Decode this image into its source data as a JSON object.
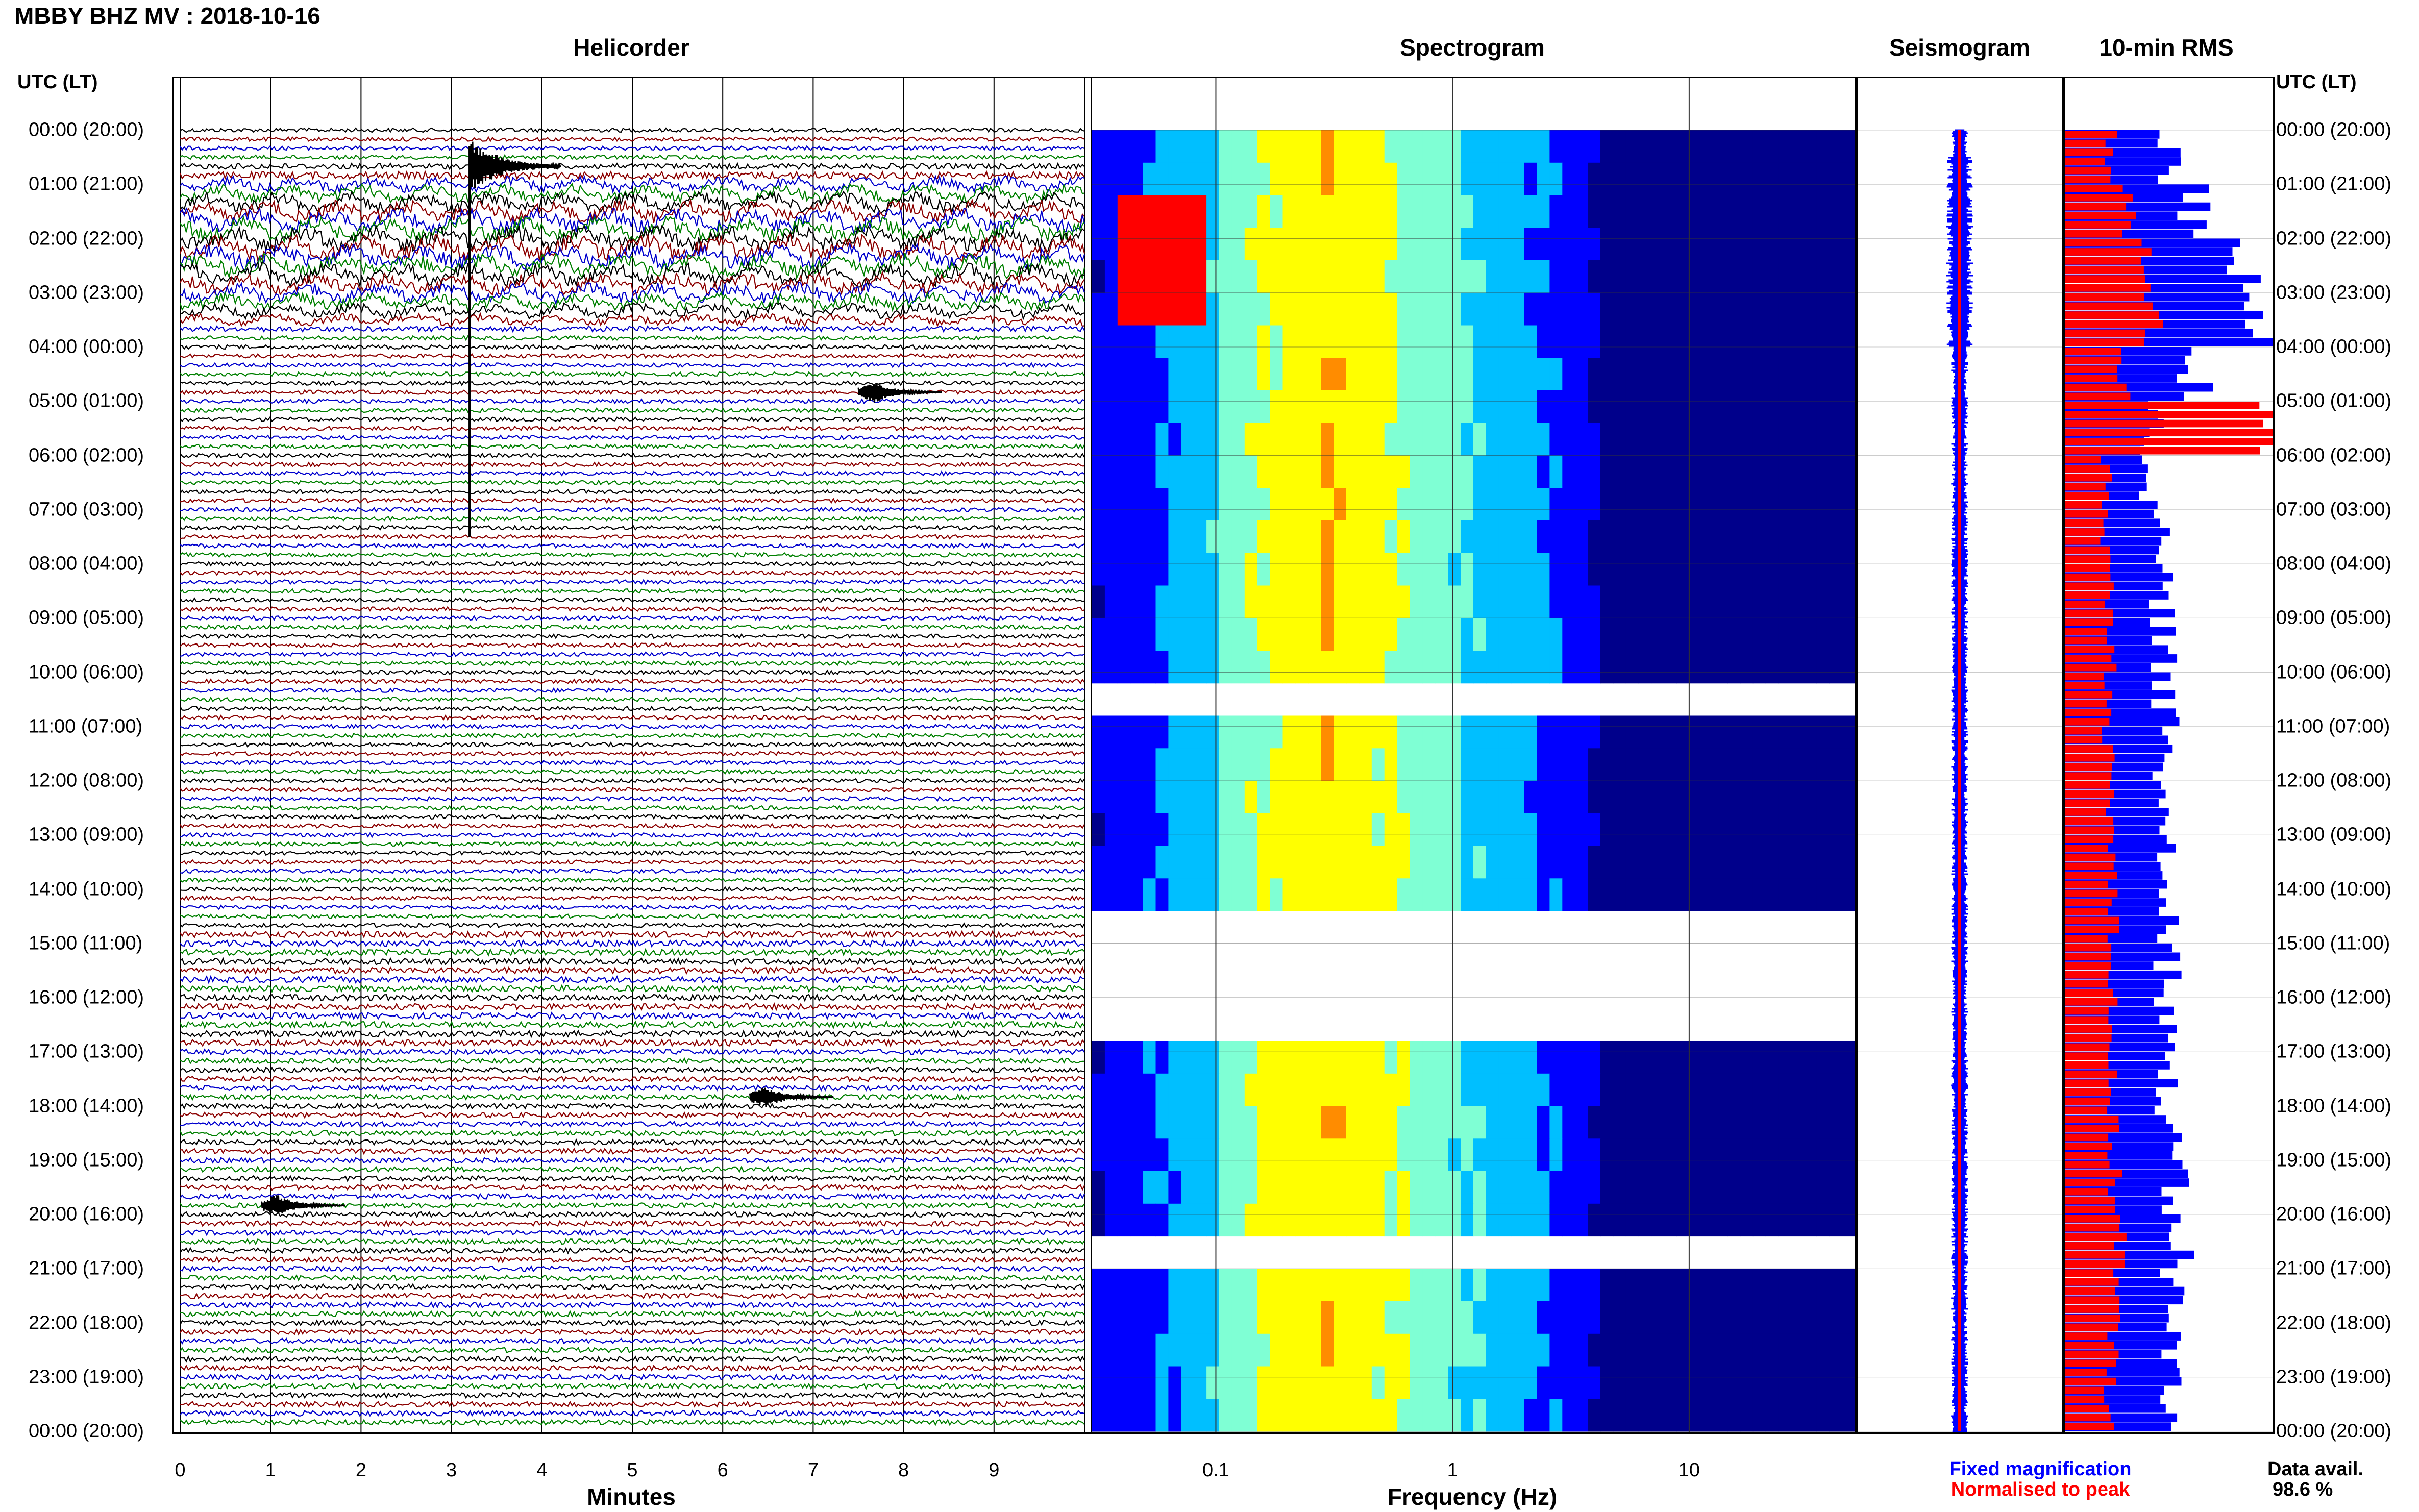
{
  "header": {
    "title": "MBBY BHZ MV : 2018-10-16",
    "utc_label": "UTC (LT)",
    "utc_label_right": "UTC (LT)"
  },
  "panels": {
    "helicorder": "Helicorder",
    "spectrogram": "Spectrogram",
    "seismogram": "Seismogram",
    "rms": "10-min RMS"
  },
  "time_labels": [
    "00:00 (20:00)",
    "01:00 (21:00)",
    "02:00 (22:00)",
    "03:00 (23:00)",
    "04:00 (00:00)",
    "05:00 (01:00)",
    "06:00 (02:00)",
    "07:00 (03:00)",
    "08:00 (04:00)",
    "09:00 (05:00)",
    "10:00 (06:00)",
    "11:00 (07:00)",
    "12:00 (08:00)",
    "13:00 (09:00)",
    "14:00 (10:00)",
    "15:00 (11:00)",
    "16:00 (12:00)",
    "17:00 (13:00)",
    "18:00 (14:00)",
    "19:00 (15:00)",
    "20:00 (16:00)",
    "21:00 (17:00)",
    "22:00 (18:00)",
    "23:00 (19:00)",
    "00:00 (20:00)"
  ],
  "helicorder_axis": {
    "ticks": [
      "0",
      "1",
      "2",
      "3",
      "4",
      "5",
      "6",
      "7",
      "8",
      "9"
    ],
    "label": "Minutes"
  },
  "spectrogram_axis": {
    "ticks": [
      "0.1",
      "1",
      "10"
    ],
    "label": "Frequency (Hz)"
  },
  "legend": {
    "fixed": "Fixed magnification",
    "normalised": "Normalised to peak",
    "fixed_color": "#0000ff",
    "normalised_color": "#ff0000"
  },
  "availability": {
    "label": "Data avail.",
    "value": "98.6 %"
  },
  "chart_data": [
    {
      "type": "line",
      "title": "Helicorder",
      "xlabel": "Minutes",
      "xlim": [
        0,
        10
      ],
      "trace_colors": [
        "#000000",
        "#8b0000",
        "#0000cd",
        "#008000"
      ],
      "rows_per_hour": 6,
      "row_span_minutes": 10,
      "events": [
        {
          "time": "00:40",
          "minute": 3.2,
          "note": ""
        },
        {
          "time": "04:50",
          "minute": 7.5,
          "note": ""
        },
        {
          "time": "17:50",
          "minute": 6.3,
          "note": ""
        },
        {
          "time": "19:50",
          "minute": 0.9,
          "note": ""
        }
      ]
    },
    {
      "type": "heatmap",
      "title": "Spectrogram",
      "xlabel": "Frequency (Hz)",
      "xscale": "log",
      "xlim": [
        0.03,
        50
      ],
      "colormap": [
        "#00008b",
        "#0000ff",
        "#00bfff",
        "#7fffd4",
        "#ffff00",
        "#ff8c00",
        "#ff0000"
      ]
    },
    {
      "type": "line",
      "title": "Seismogram",
      "series": [
        {
          "name": "Fixed magnification",
          "color": "#0000ff"
        },
        {
          "name": "Normalised to peak",
          "color": "#ff0000"
        }
      ]
    },
    {
      "type": "bar",
      "title": "10-min RMS",
      "orientation": "horizontal",
      "categories": [
        "00:00",
        "01:00",
        "02:00",
        "03:00",
        "04:00",
        "05:00",
        "06:00",
        "07:00",
        "08:00",
        "09:00",
        "10:00",
        "11:00",
        "12:00",
        "13:00",
        "14:00",
        "15:00",
        "16:00",
        "17:00",
        "18:00",
        "19:00",
        "20:00",
        "21:00",
        "22:00",
        "23:00"
      ],
      "series": [
        {
          "name": "Fixed magnification",
          "color": "#0000ff",
          "values": [
            0.5,
            0.62,
            0.82,
            0.98,
            0.62,
            0.42,
            0.41,
            0.44,
            0.46,
            0.48,
            0.48,
            0.47,
            0.48,
            0.5,
            0.52,
            0.5,
            0.5,
            0.48,
            0.5,
            0.52,
            0.55,
            0.52,
            0.51,
            0.5
          ]
        },
        {
          "name": "Normalised to peak",
          "color": "#ff0000",
          "values": [
            0.22,
            0.3,
            0.38,
            0.42,
            0.28,
            1.0,
            0.2,
            0.2,
            0.21,
            0.22,
            0.22,
            0.21,
            0.22,
            0.23,
            0.24,
            0.23,
            0.23,
            0.22,
            0.23,
            0.24,
            0.27,
            0.24,
            0.23,
            0.22
          ]
        }
      ]
    }
  ]
}
